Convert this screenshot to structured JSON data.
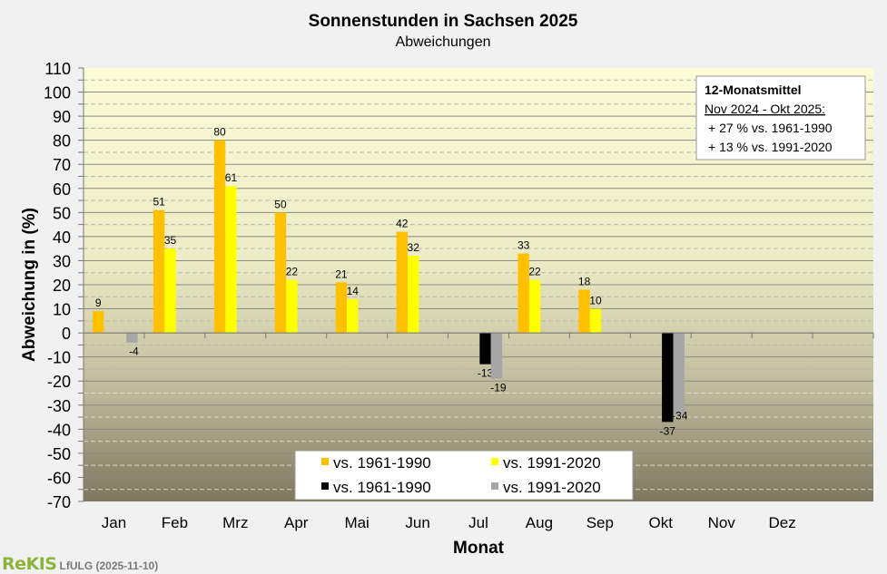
{
  "chart_data": {
    "type": "bar",
    "title": "Sonnenstunden in Sachsen 2025",
    "subtitle": "Abweichungen",
    "xlabel": "Monat",
    "ylabel": "Abweichung in (%)",
    "ylim": [
      -70,
      110
    ],
    "yticks": [
      110,
      100,
      90,
      80,
      70,
      60,
      50,
      40,
      30,
      20,
      10,
      0,
      -10,
      -20,
      -30,
      -40,
      -50,
      -60,
      -70
    ],
    "grid": true,
    "categories": [
      "Jan",
      "Feb",
      "Mrz",
      "Apr",
      "Mai",
      "Jun",
      "Jul",
      "Aug",
      "Sep",
      "Okt",
      "Nov",
      "Dez"
    ],
    "series": [
      {
        "name": "vs. 1961-1990",
        "color": "#ffc000",
        "values": [
          9,
          51,
          80,
          50,
          21,
          42,
          null,
          33,
          18,
          null,
          null,
          null
        ]
      },
      {
        "name": "vs. 1991-2020",
        "color": "#ffff00",
        "values": [
          null,
          35,
          61,
          22,
          14,
          32,
          null,
          22,
          10,
          null,
          null,
          null
        ]
      },
      {
        "name": "vs. 1961-1990",
        "color": "#000000",
        "values": [
          null,
          null,
          null,
          null,
          null,
          null,
          -13,
          null,
          null,
          -37,
          null,
          null
        ]
      },
      {
        "name": "vs. 1991-2020",
        "color": "#a6a6a6",
        "values": [
          -4,
          null,
          null,
          null,
          null,
          null,
          -19,
          null,
          null,
          -34,
          null,
          null
        ]
      }
    ],
    "legend_position": "bottom-center",
    "annotation": {
      "title": "12-Monatsmittel",
      "period": "Nov 2024 - Okt 2025:",
      "lines": [
        "+ 27 % vs. 1961-1990",
        "+ 13 % vs. 1991-2020"
      ]
    }
  },
  "footer": {
    "logo": "ReKIS",
    "source": "LfULG (2025-11-10)"
  }
}
